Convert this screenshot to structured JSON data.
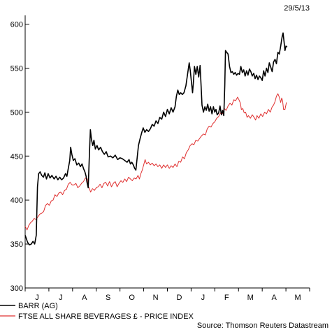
{
  "chart_data": {
    "type": "line",
    "date_label": "29/5/13",
    "source": "Source: Thomson Reuters Datastream",
    "ylim": [
      300,
      610
    ],
    "yticks": [
      300,
      350,
      400,
      450,
      500,
      550,
      600
    ],
    "xlim": [
      0,
      12
    ],
    "month_labels": [
      "J",
      "J",
      "A",
      "S",
      "O",
      "N",
      "D",
      "J",
      "F",
      "M",
      "A",
      "M"
    ],
    "series": [
      {
        "name": "BARR (AG)",
        "color": "#000000",
        "points": [
          [
            0.0,
            360
          ],
          [
            0.1,
            352
          ],
          [
            0.18,
            349
          ],
          [
            0.26,
            350
          ],
          [
            0.33,
            353
          ],
          [
            0.4,
            350
          ],
          [
            0.47,
            360
          ],
          [
            0.52,
            415
          ],
          [
            0.57,
            430
          ],
          [
            0.63,
            432
          ],
          [
            0.7,
            428
          ],
          [
            0.77,
            426
          ],
          [
            0.83,
            431
          ],
          [
            0.9,
            424
          ],
          [
            0.97,
            430
          ],
          [
            1.05,
            425
          ],
          [
            1.13,
            428
          ],
          [
            1.22,
            424
          ],
          [
            1.3,
            427
          ],
          [
            1.38,
            423
          ],
          [
            1.46,
            426
          ],
          [
            1.54,
            423
          ],
          [
            1.62,
            425
          ],
          [
            1.7,
            430
          ],
          [
            1.76,
            427
          ],
          [
            1.82,
            436
          ],
          [
            1.88,
            445
          ],
          [
            1.92,
            460
          ],
          [
            1.97,
            452
          ],
          [
            2.03,
            445
          ],
          [
            2.1,
            447
          ],
          [
            2.18,
            440
          ],
          [
            2.26,
            442
          ],
          [
            2.33,
            438
          ],
          [
            2.4,
            441
          ],
          [
            2.46,
            436
          ],
          [
            2.52,
            432
          ],
          [
            2.57,
            427
          ],
          [
            2.61,
            420
          ],
          [
            2.66,
            414
          ],
          [
            2.7,
            445
          ],
          [
            2.75,
            480
          ],
          [
            2.8,
            468
          ],
          [
            2.85,
            462
          ],
          [
            2.9,
            468
          ],
          [
            2.96,
            458
          ],
          [
            3.03,
            462
          ],
          [
            3.1,
            457
          ],
          [
            3.18,
            460
          ],
          [
            3.26,
            455
          ],
          [
            3.34,
            452
          ],
          [
            3.42,
            455
          ],
          [
            3.5,
            449
          ],
          [
            3.6,
            450
          ],
          [
            3.7,
            448
          ],
          [
            3.8,
            451
          ],
          [
            3.9,
            446
          ],
          [
            4.0,
            448
          ],
          [
            4.1,
            447
          ],
          [
            4.2,
            445
          ],
          [
            4.3,
            443
          ],
          [
            4.38,
            446
          ],
          [
            4.44,
            441
          ],
          [
            4.5,
            443
          ],
          [
            4.56,
            440
          ],
          [
            4.62,
            436
          ],
          [
            4.67,
            434
          ],
          [
            4.72,
            447
          ],
          [
            4.78,
            462
          ],
          [
            4.85,
            470
          ],
          [
            4.92,
            477
          ],
          [
            4.98,
            482
          ],
          [
            5.05,
            477
          ],
          [
            5.12,
            480
          ],
          [
            5.2,
            478
          ],
          [
            5.28,
            481
          ],
          [
            5.36,
            486
          ],
          [
            5.44,
            484
          ],
          [
            5.52,
            490
          ],
          [
            5.6,
            487
          ],
          [
            5.68,
            494
          ],
          [
            5.76,
            492
          ],
          [
            5.84,
            500
          ],
          [
            5.92,
            495
          ],
          [
            6.0,
            503
          ],
          [
            6.08,
            498
          ],
          [
            6.16,
            505
          ],
          [
            6.24,
            500
          ],
          [
            6.32,
            506
          ],
          [
            6.38,
            518
          ],
          [
            6.44,
            525
          ],
          [
            6.5,
            520
          ],
          [
            6.56,
            522
          ],
          [
            6.63,
            520
          ],
          [
            6.7,
            522
          ],
          [
            6.78,
            530
          ],
          [
            6.86,
            545
          ],
          [
            6.92,
            556
          ],
          [
            6.96,
            548
          ],
          [
            7.01,
            535
          ],
          [
            7.06,
            522
          ],
          [
            7.1,
            535
          ],
          [
            7.14,
            552
          ],
          [
            7.2,
            543
          ],
          [
            7.26,
            552
          ],
          [
            7.32,
            540
          ],
          [
            7.38,
            553
          ],
          [
            7.42,
            530
          ],
          [
            7.46,
            508
          ],
          [
            7.52,
            500
          ],
          [
            7.58,
            506
          ],
          [
            7.64,
            502
          ],
          [
            7.7,
            509
          ],
          [
            7.76,
            501
          ],
          [
            7.82,
            506
          ],
          [
            7.88,
            498
          ],
          [
            7.94,
            506
          ],
          [
            8.0,
            500
          ],
          [
            8.05,
            503
          ],
          [
            8.1,
            497
          ],
          [
            8.16,
            499
          ],
          [
            8.22,
            507
          ],
          [
            8.28,
            497
          ],
          [
            8.33,
            502
          ],
          [
            8.38,
            496
          ],
          [
            8.42,
            530
          ],
          [
            8.45,
            570
          ],
          [
            8.5,
            568
          ],
          [
            8.56,
            566
          ],
          [
            8.62,
            552
          ],
          [
            8.68,
            545
          ],
          [
            8.74,
            546
          ],
          [
            8.8,
            543
          ],
          [
            8.86,
            545
          ],
          [
            8.92,
            542
          ],
          [
            8.98,
            544
          ],
          [
            9.04,
            543
          ],
          [
            9.1,
            552
          ],
          [
            9.16,
            545
          ],
          [
            9.22,
            548
          ],
          [
            9.28,
            541
          ],
          [
            9.34,
            547
          ],
          [
            9.4,
            542
          ],
          [
            9.46,
            549
          ],
          [
            9.52,
            546
          ],
          [
            9.58,
            541
          ],
          [
            9.64,
            544
          ],
          [
            9.7,
            538
          ],
          [
            9.76,
            542
          ],
          [
            9.82,
            537
          ],
          [
            9.88,
            541
          ],
          [
            9.94,
            539
          ],
          [
            10.0,
            536
          ],
          [
            10.06,
            547
          ],
          [
            10.12,
            541
          ],
          [
            10.18,
            550
          ],
          [
            10.24,
            545
          ],
          [
            10.3,
            556
          ],
          [
            10.36,
            551
          ],
          [
            10.42,
            546
          ],
          [
            10.48,
            557
          ],
          [
            10.54,
            560
          ],
          [
            10.6,
            555
          ],
          [
            10.66,
            568
          ],
          [
            10.72,
            566
          ],
          [
            10.78,
            575
          ],
          [
            10.84,
            586
          ],
          [
            10.88,
            590
          ],
          [
            10.92,
            580
          ],
          [
            10.96,
            570
          ],
          [
            11.0,
            575
          ],
          [
            11.05,
            574
          ]
        ]
      },
      {
        "name": "FTSE ALL SHARE BEVERAGES £ - PRICE INDEX",
        "color": "#e03030",
        "points": [
          [
            0.0,
            370
          ],
          [
            0.08,
            366
          ],
          [
            0.15,
            371
          ],
          [
            0.22,
            374
          ],
          [
            0.3,
            376
          ],
          [
            0.38,
            379
          ],
          [
            0.46,
            378
          ],
          [
            0.54,
            381
          ],
          [
            0.62,
            384
          ],
          [
            0.7,
            385
          ],
          [
            0.78,
            387
          ],
          [
            0.86,
            394
          ],
          [
            0.94,
            396
          ],
          [
            1.02,
            394
          ],
          [
            1.1,
            399
          ],
          [
            1.18,
            400
          ],
          [
            1.26,
            406
          ],
          [
            1.34,
            404
          ],
          [
            1.42,
            408
          ],
          [
            1.5,
            409
          ],
          [
            1.58,
            406
          ],
          [
            1.66,
            411
          ],
          [
            1.74,
            412
          ],
          [
            1.82,
            418
          ],
          [
            1.9,
            420
          ],
          [
            1.98,
            417
          ],
          [
            2.06,
            417
          ],
          [
            2.14,
            419
          ],
          [
            2.22,
            414
          ],
          [
            2.3,
            416
          ],
          [
            2.38,
            419
          ],
          [
            2.46,
            421
          ],
          [
            2.54,
            425
          ],
          [
            2.62,
            424
          ],
          [
            2.66,
            415
          ],
          [
            2.7,
            414
          ],
          [
            2.76,
            409
          ],
          [
            2.84,
            413
          ],
          [
            2.92,
            411
          ],
          [
            3.0,
            414
          ],
          [
            3.08,
            415
          ],
          [
            3.16,
            418
          ],
          [
            3.24,
            414
          ],
          [
            3.32,
            419
          ],
          [
            3.4,
            420
          ],
          [
            3.48,
            416
          ],
          [
            3.56,
            421
          ],
          [
            3.64,
            415
          ],
          [
            3.72,
            419
          ],
          [
            3.8,
            421
          ],
          [
            3.88,
            415
          ],
          [
            3.96,
            419
          ],
          [
            4.04,
            422
          ],
          [
            4.12,
            420
          ],
          [
            4.2,
            424
          ],
          [
            4.28,
            421
          ],
          [
            4.36,
            426
          ],
          [
            4.44,
            424
          ],
          [
            4.52,
            422
          ],
          [
            4.6,
            425
          ],
          [
            4.68,
            424
          ],
          [
            4.76,
            428
          ],
          [
            4.82,
            424
          ],
          [
            4.88,
            430
          ],
          [
            4.94,
            434
          ],
          [
            5.0,
            440
          ],
          [
            5.06,
            446
          ],
          [
            5.12,
            441
          ],
          [
            5.2,
            443
          ],
          [
            5.28,
            440
          ],
          [
            5.36,
            442
          ],
          [
            5.44,
            439
          ],
          [
            5.52,
            441
          ],
          [
            5.6,
            438
          ],
          [
            5.68,
            440
          ],
          [
            5.76,
            436
          ],
          [
            5.84,
            440
          ],
          [
            5.92,
            437
          ],
          [
            6.0,
            440
          ],
          [
            6.08,
            436
          ],
          [
            6.16,
            439
          ],
          [
            6.24,
            437
          ],
          [
            6.32,
            441
          ],
          [
            6.4,
            438
          ],
          [
            6.48,
            444
          ],
          [
            6.56,
            443
          ],
          [
            6.64,
            449
          ],
          [
            6.72,
            447
          ],
          [
            6.8,
            454
          ],
          [
            6.88,
            457
          ],
          [
            6.96,
            462
          ],
          [
            7.04,
            464
          ],
          [
            7.12,
            463
          ],
          [
            7.2,
            468
          ],
          [
            7.28,
            467
          ],
          [
            7.36,
            470
          ],
          [
            7.44,
            473
          ],
          [
            7.52,
            475
          ],
          [
            7.6,
            474
          ],
          [
            7.68,
            481
          ],
          [
            7.76,
            484
          ],
          [
            7.84,
            483
          ],
          [
            7.92,
            487
          ],
          [
            8.0,
            489
          ],
          [
            8.08,
            493
          ],
          [
            8.16,
            495
          ],
          [
            8.24,
            499
          ],
          [
            8.32,
            498
          ],
          [
            8.4,
            504
          ],
          [
            8.48,
            502
          ],
          [
            8.56,
            507
          ],
          [
            8.64,
            510
          ],
          [
            8.72,
            508
          ],
          [
            8.8,
            514
          ],
          [
            8.88,
            513
          ],
          [
            8.96,
            517
          ],
          [
            9.02,
            514
          ],
          [
            9.08,
            510
          ],
          [
            9.12,
            503
          ],
          [
            9.18,
            504
          ],
          [
            9.24,
            499
          ],
          [
            9.3,
            500
          ],
          [
            9.36,
            494
          ],
          [
            9.42,
            496
          ],
          [
            9.5,
            493
          ],
          [
            9.58,
            497
          ],
          [
            9.66,
            494
          ],
          [
            9.72,
            491
          ],
          [
            9.78,
            496
          ],
          [
            9.86,
            493
          ],
          [
            9.94,
            498
          ],
          [
            10.02,
            495
          ],
          [
            10.1,
            500
          ],
          [
            10.18,
            498
          ],
          [
            10.26,
            503
          ],
          [
            10.34,
            500
          ],
          [
            10.42,
            506
          ],
          [
            10.48,
            508
          ],
          [
            10.54,
            512
          ],
          [
            10.6,
            518
          ],
          [
            10.66,
            521
          ],
          [
            10.72,
            517
          ],
          [
            10.78,
            511
          ],
          [
            10.82,
            516
          ],
          [
            10.86,
            513
          ],
          [
            10.9,
            503
          ],
          [
            10.96,
            503
          ],
          [
            11.02,
            511
          ]
        ]
      }
    ]
  }
}
